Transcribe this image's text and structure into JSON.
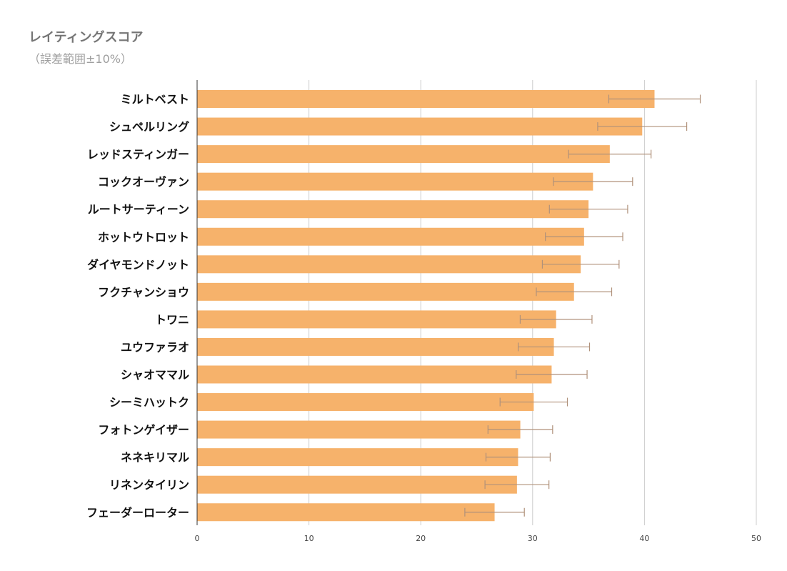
{
  "chart_data": {
    "type": "bar",
    "orientation": "horizontal",
    "title": "レイティングスコア",
    "subtitle": "（誤差範囲±10%）",
    "categories": [
      "ミルトベスト",
      "シュペルリング",
      "レッドスティンガー",
      "コックオーヴァン",
      "ルートサーティーン",
      "ホットウトロット",
      "ダイヤモンドノット",
      "フクチャンショウ",
      "トワニ",
      "ユウファラオ",
      "シャオママル",
      "シーミハットク",
      "フォトンゲイザー",
      "ネネキリマル",
      "リネンタイリン",
      "フェーダーローター"
    ],
    "values": [
      40.9,
      39.8,
      36.9,
      35.4,
      35.0,
      34.6,
      34.3,
      33.7,
      32.1,
      31.9,
      31.7,
      30.1,
      28.9,
      28.7,
      28.6,
      26.6
    ],
    "error_bars": {
      "type": "percent",
      "value": 10
    },
    "xlim": [
      0,
      50
    ],
    "xticks": [
      0,
      10,
      20,
      30,
      40,
      50
    ],
    "grid": true,
    "legend": "none",
    "colors": {
      "bar": "#f6b26b",
      "error_bar": "#b0917a",
      "grid": "#cccccc",
      "axis": "#333333"
    }
  }
}
